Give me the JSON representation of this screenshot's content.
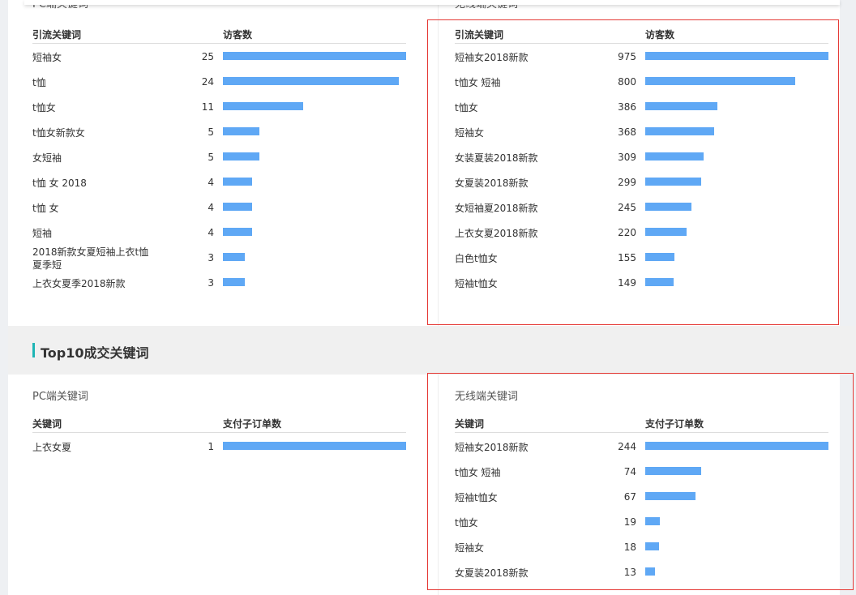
{
  "section1": {
    "pc": {
      "subtitle": "PC端关键词",
      "col_keyword": "引流关键词",
      "col_value": "访客数",
      "max": 25,
      "rows": [
        {
          "k": "短袖女",
          "v": 25
        },
        {
          "k": "t恤",
          "v": 24
        },
        {
          "k": "t恤女",
          "v": 11
        },
        {
          "k": "t恤女新款女",
          "v": 5
        },
        {
          "k": "女短袖",
          "v": 5
        },
        {
          "k": "t恤 女 2018",
          "v": 4
        },
        {
          "k": "t恤 女",
          "v": 4
        },
        {
          "k": "短袖",
          "v": 4
        },
        {
          "k": "2018新款女夏短袖上衣t恤夏季短",
          "v": 3
        },
        {
          "k": "上衣女夏季2018新款",
          "v": 3
        }
      ]
    },
    "mobile": {
      "subtitle": "无线端关键词",
      "col_keyword": "引流关键词",
      "col_value": "访客数",
      "max": 975,
      "rows": [
        {
          "k": "短袖女2018新款",
          "v": 975
        },
        {
          "k": "t恤女 短袖",
          "v": 800
        },
        {
          "k": "t恤女",
          "v": 386
        },
        {
          "k": "短袖女",
          "v": 368
        },
        {
          "k": "女装夏装2018新款",
          "v": 309
        },
        {
          "k": "女夏装2018新款",
          "v": 299
        },
        {
          "k": "女短袖夏2018新款",
          "v": 245
        },
        {
          "k": "上衣女夏2018新款",
          "v": 220
        },
        {
          "k": "白色t恤女",
          "v": 155
        },
        {
          "k": "短袖t恤女",
          "v": 149
        }
      ]
    }
  },
  "section2": {
    "title": "Top10成交关键词",
    "pc": {
      "subtitle": "PC端关键词",
      "col_keyword": "关键词",
      "col_value": "支付子订单数",
      "max": 1,
      "rows": [
        {
          "k": "上衣女夏",
          "v": 1
        }
      ]
    },
    "mobile": {
      "subtitle": "无线端关键词",
      "col_keyword": "关键词",
      "col_value": "支付子订单数",
      "max": 244,
      "rows": [
        {
          "k": "短袖女2018新款",
          "v": 244
        },
        {
          "k": "t恤女 短袖",
          "v": 74
        },
        {
          "k": "短袖t恤女",
          "v": 67
        },
        {
          "k": "t恤女",
          "v": 19
        },
        {
          "k": "短袖女",
          "v": 18
        },
        {
          "k": "女夏装2018新款",
          "v": 13
        }
      ]
    }
  },
  "colors": {
    "bar": "#5fa8f5",
    "accent": "#1fb5b5",
    "highlight": "#e53935"
  }
}
